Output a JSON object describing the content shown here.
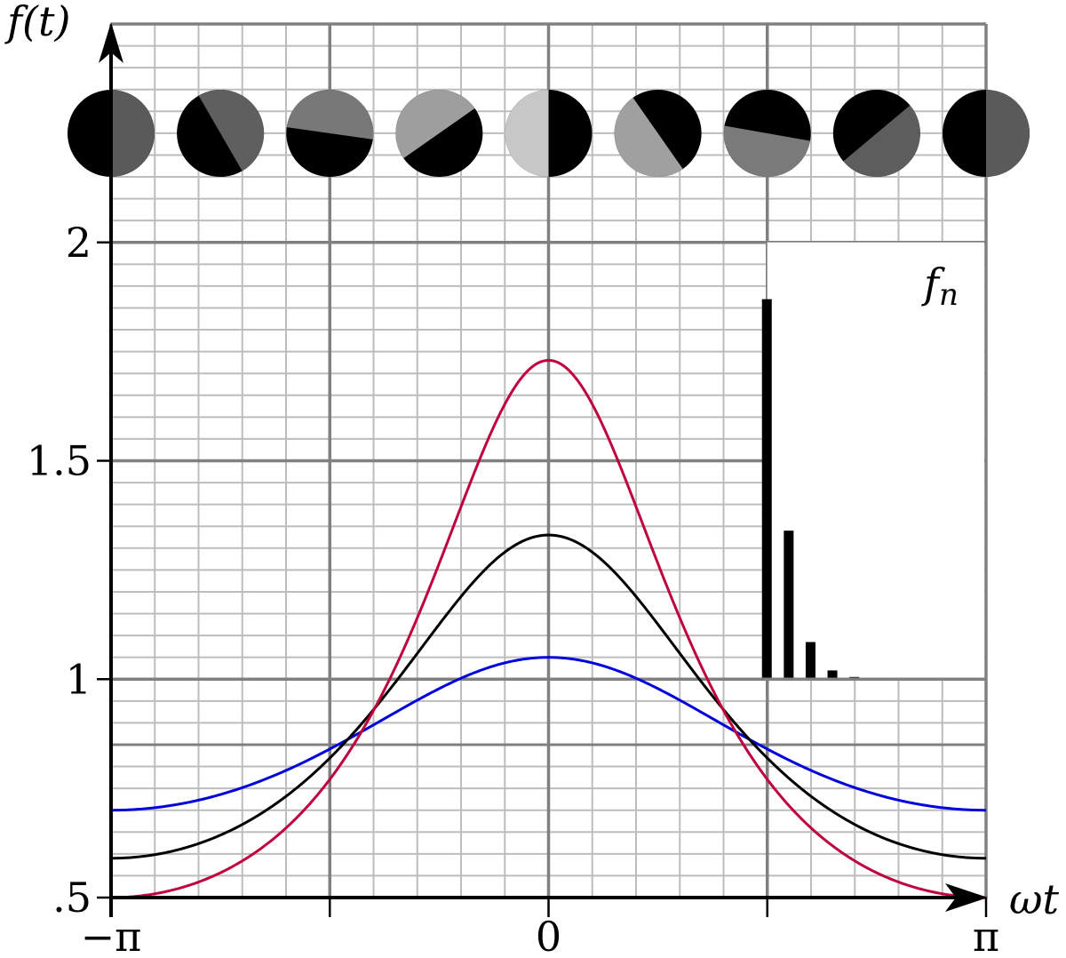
{
  "chart_data": {
    "type": "line",
    "title": "",
    "ylabel": "f(t)",
    "xlabel": "ωt",
    "xlim": [
      -3.14159,
      3.14159
    ],
    "ylim": [
      0.5,
      2.5
    ],
    "x_ticks": [
      {
        "value": -3.14159,
        "label": "−π"
      },
      {
        "value": -1.5708,
        "label": ""
      },
      {
        "value": 0,
        "label": "0"
      },
      {
        "value": 1.5708,
        "label": ""
      },
      {
        "value": 3.14159,
        "label": "π"
      }
    ],
    "y_ticks": [
      {
        "value": 0.5,
        "label": ".5"
      },
      {
        "value": 1.0,
        "label": "1"
      },
      {
        "value": 1.5,
        "label": "1.5"
      },
      {
        "value": 2.0,
        "label": "2"
      }
    ],
    "grid": true,
    "extra_gridline_y": 0.85,
    "series": [
      {
        "color": "#0000dd",
        "params": {
          "a": 0.2,
          "c": 0.7
        },
        "min": 0.7,
        "max": 1.05
      },
      {
        "color": "#000000",
        "params": {
          "a": 0.38,
          "c": 0.6
        },
        "min": 0.59,
        "max": 1.33
      },
      {
        "color": "#c0003c",
        "params": {
          "a": 0.56,
          "c": 0.5
        },
        "min": 0.5,
        "max": 1.73
      }
    ],
    "inset": {
      "label": "f",
      "label_sub": "n",
      "type": "bar",
      "baseline": 1.0,
      "values": [
        1.87,
        1.34,
        1.085,
        1.02,
        1.005,
        1.002,
        1.001,
        1.0,
        1.0,
        1.0
      ]
    },
    "phase_discs": {
      "x_values": [
        -3.14159,
        -2.35619,
        -1.5708,
        -0.7854,
        0,
        0.7854,
        1.5708,
        2.35619,
        3.14159
      ],
      "rotation_deg": [
        0,
        -30,
        -82,
        -125,
        -180,
        -215,
        -260,
        -310,
        -360
      ],
      "fill_colors": [
        "#5a5a5a",
        "#5f5f5f",
        "#787878",
        "#9e9e9e",
        "#c7c7c7",
        "#a0a0a0",
        "#7a7a7a",
        "#5d5d5d",
        "#5a5a5a"
      ]
    }
  }
}
